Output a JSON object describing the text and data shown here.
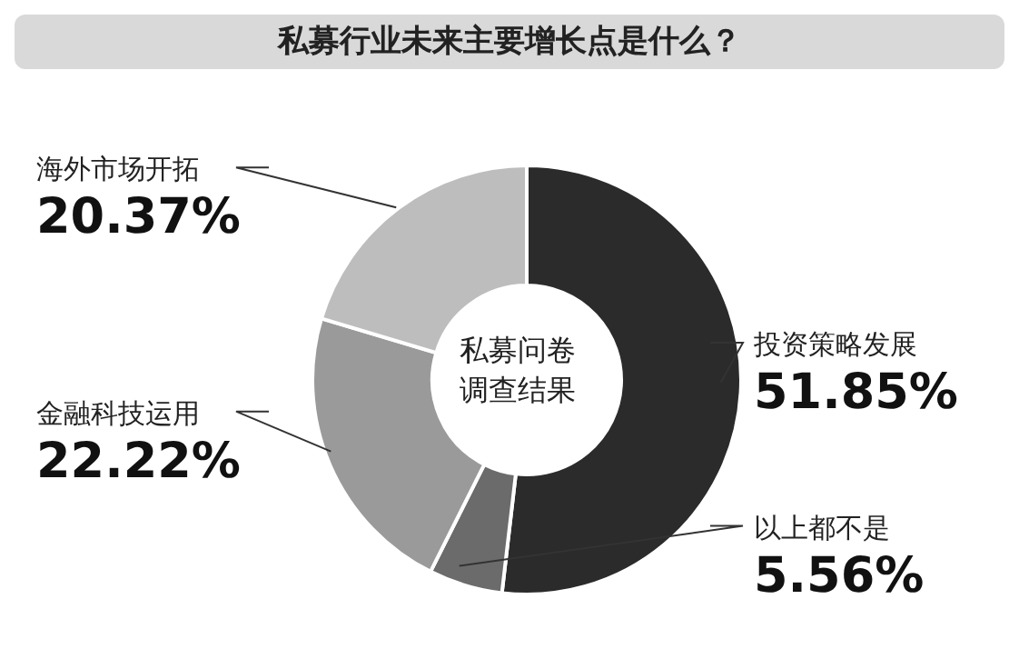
{
  "chart_data": {
    "type": "donut",
    "title": "私募行业未来主要增长点是什么？",
    "categories": [
      "投资策略发展",
      "以上都不是",
      "金融科技运用",
      "海外市场开拓"
    ],
    "values": [
      51.85,
      5.56,
      22.22,
      20.37
    ],
    "value_labels": [
      "51.85%",
      "5.56%",
      "22.22%",
      "20.37%"
    ],
    "colors": [
      "#2b2b2b",
      "#6b6b6b",
      "#9a9a9a",
      "#bdbdbd"
    ],
    "annotations": [
      "私募问卷调查结果"
    ]
  }
}
